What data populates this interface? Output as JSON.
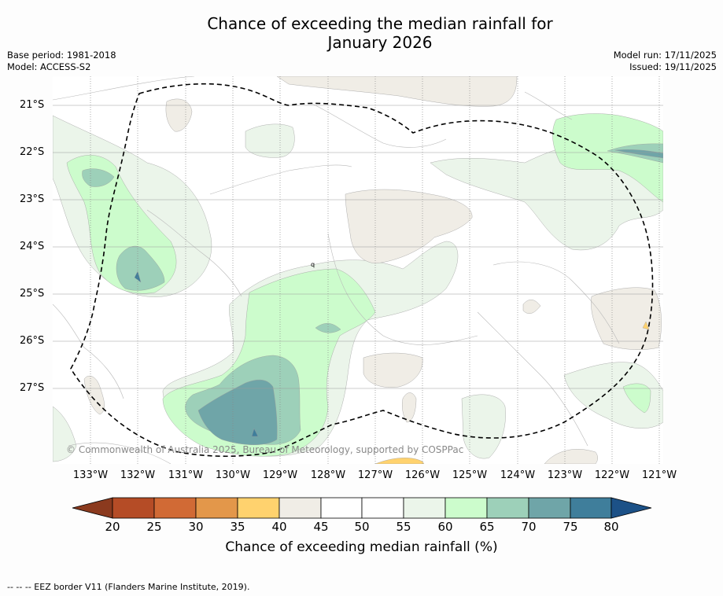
{
  "title_line1": "Chance of exceeding the median rainfall for",
  "title_line2": "January 2026",
  "meta_left": {
    "base_period": "Base period: 1981-2018",
    "model": "Model: ACCESS-S2"
  },
  "meta_right": {
    "model_run": "Model run: 17/11/2025",
    "issued": "Issued: 19/11/2025"
  },
  "lat_labels": [
    "21°S",
    "22°S",
    "23°S",
    "24°S",
    "25°S",
    "26°S",
    "27°S"
  ],
  "lon_labels": [
    "133°W",
    "132°W",
    "131°W",
    "130°W",
    "129°W",
    "128°W",
    "127°W",
    "126°W",
    "125°W",
    "124°W",
    "123°W",
    "122°W",
    "121°W"
  ],
  "credit": "© Commonwealth of Australia 2025, Bureau of Meteorology, supported by COSPPac",
  "colorbar": {
    "ticks": [
      "20",
      "25",
      "30",
      "35",
      "40",
      "45",
      "50",
      "55",
      "60",
      "65",
      "70",
      "75",
      "80"
    ],
    "label": "Chance of exceeding median rainfall (%)",
    "colors": [
      "#b54c26",
      "#d16a35",
      "#e3974a",
      "#ffd26e",
      "#f0ede6",
      "#ffffff",
      "#ffffff",
      "#ebf5ea",
      "#ccfccc",
      "#9dd0b9",
      "#6fa5a8",
      "#3f7e9b"
    ],
    "under_color": "#8b3a1e",
    "over_color": "#1c5187"
  },
  "map_colors": {
    "band_55_60": "#ebf5ea",
    "band_60_65": "#ccfccc",
    "band_65_70": "#9dd0b9",
    "band_70_75": "#6fa5a8",
    "band_75_80": "#3f7e9b",
    "band_40_45": "#f0ede6",
    "band_35_40": "#ffd26e"
  },
  "map_marks": [
    "q"
  ],
  "footer": "--  --  -- EEZ border V11 (Flanders Marine Institute, 2019)."
}
